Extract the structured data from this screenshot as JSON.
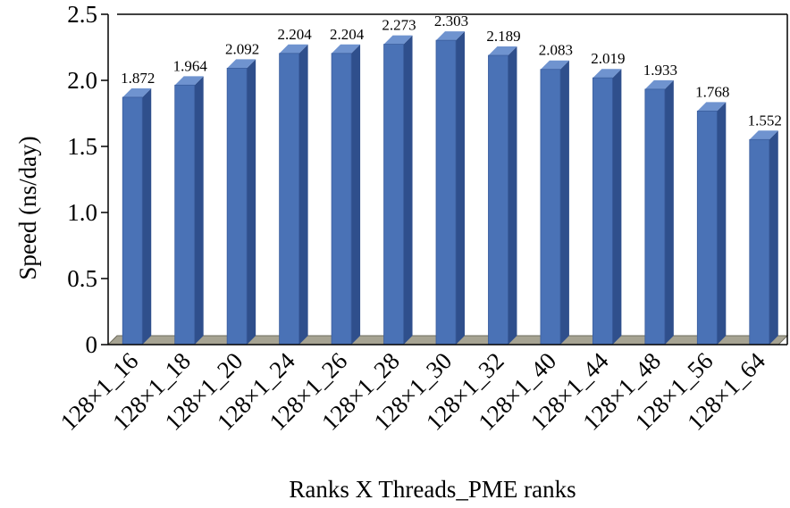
{
  "chart_data": {
    "type": "bar",
    "title": "",
    "xlabel": "Ranks X Threads_PME ranks",
    "ylabel": "Speed (ns/day)",
    "ylim": [
      0,
      2.5
    ],
    "yticks": [
      "0",
      "0.5",
      "1.0",
      "1.5",
      "2.0",
      "2.5"
    ],
    "grid": false,
    "legend": "none",
    "bar_style": "3d",
    "categories": [
      "128×1_16",
      "128×1_18",
      "128×1_20",
      "128×1_24",
      "128×1_26",
      "128×1_28",
      "128×1_30",
      "128×1_32",
      "128×1_40",
      "128×1_44",
      "128×1_48",
      "128×1_56",
      "128×1_64"
    ],
    "values": [
      1.872,
      1.964,
      2.092,
      2.204,
      2.204,
      2.273,
      2.303,
      2.189,
      2.083,
      2.019,
      1.933,
      1.768,
      1.552
    ],
    "value_labels": [
      "1.872",
      "1.964",
      "2.092",
      "2.204",
      "2.204",
      "2.273",
      "2.303",
      "2.189",
      "2.083",
      "2.019",
      "1.933",
      "1.768",
      "1.552"
    ],
    "colors": {
      "bar_front": "#4a72b6",
      "bar_side": "#2f4f8c",
      "bar_top": "#6f93cf",
      "floor": "#a6a392",
      "axis": "#000000"
    }
  }
}
